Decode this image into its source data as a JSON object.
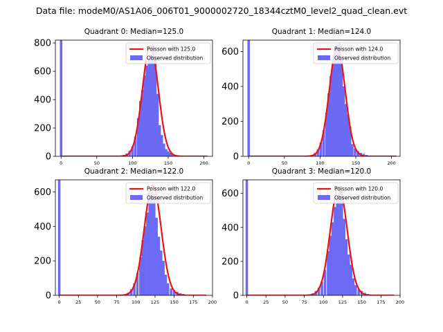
{
  "figure": {
    "suptitle": "Data file: modeM0/AS1A06_006T01_9000002720_18344cztM0_level2_quad_clean.evt",
    "bar_color": "#6a6af5",
    "curve_color": "#ee1111"
  },
  "chart_data": [
    {
      "type": "bar",
      "title": "Quadrant 0: Median=125.0",
      "xlabel": "",
      "ylabel": "",
      "xlim": [
        -8,
        212
      ],
      "ylim": [
        0,
        820
      ],
      "xticks": [
        0,
        50,
        100,
        150,
        200
      ],
      "yticks": [
        0,
        200,
        400,
        600,
        800
      ],
      "bin_width": 3.5,
      "zero_bin_height": 820,
      "poisson_mean": 125.0,
      "poisson_peak": 780,
      "curve_range": [
        0,
        205
      ],
      "hist_centers": [
        80,
        84,
        88,
        92,
        96,
        100,
        104,
        108,
        111,
        114,
        117,
        120,
        123,
        126,
        129,
        132,
        135,
        138,
        141,
        144,
        147,
        150,
        153,
        156,
        160,
        164,
        168,
        172
      ],
      "hist_values": [
        3,
        5,
        10,
        20,
        40,
        70,
        140,
        270,
        390,
        470,
        570,
        640,
        690,
        720,
        790,
        700,
        440,
        220,
        150,
        90,
        50,
        35,
        25,
        15,
        10,
        5,
        3,
        2
      ],
      "legend": {
        "curve": "Poisson with 125.0",
        "bars": "Observed distribution",
        "position": "upper right"
      }
    },
    {
      "type": "bar",
      "title": "Quadrant 1: Median=124.0",
      "xlabel": "",
      "ylabel": "",
      "xlim": [
        -8,
        212
      ],
      "ylim": [
        0,
        665
      ],
      "xticks": [
        0,
        50,
        100,
        150,
        200
      ],
      "yticks": [
        0,
        200,
        400,
        600
      ],
      "bin_width": 3.5,
      "zero_bin_height": 665,
      "poisson_mean": 124.0,
      "poisson_peak": 625,
      "curve_range": [
        0,
        207
      ],
      "hist_centers": [
        85,
        89,
        93,
        97,
        101,
        105,
        109,
        112,
        115,
        118,
        121,
        124,
        127,
        130,
        133,
        136,
        139,
        142,
        145,
        149,
        153,
        157,
        161,
        165,
        170,
        175
      ],
      "hist_values": [
        4,
        8,
        20,
        40,
        80,
        150,
        250,
        360,
        460,
        540,
        610,
        640,
        650,
        560,
        400,
        300,
        240,
        170,
        70,
        45,
        30,
        20,
        14,
        8,
        4,
        2
      ],
      "legend": {
        "curve": "Poisson with 124.0",
        "bars": "Observed distribution",
        "position": "upper right"
      }
    },
    {
      "type": "bar",
      "title": "Quadrant 2: Median=122.0",
      "xlabel": "",
      "ylabel": "",
      "xlim": [
        -5,
        200
      ],
      "ylim": [
        0,
        670
      ],
      "xticks": [
        0,
        25,
        50,
        75,
        100,
        125,
        150,
        175,
        200
      ],
      "yticks": [
        0,
        200,
        400,
        600
      ],
      "bin_width": 3.2,
      "zero_bin_height": 670,
      "poisson_mean": 122.0,
      "poisson_peak": 640,
      "curve_range": [
        0,
        192
      ],
      "hist_centers": [
        82,
        86,
        90,
        94,
        98,
        102,
        106,
        109,
        112,
        115,
        118,
        121,
        124,
        127,
        130,
        133,
        136,
        139,
        142,
        146,
        150,
        154,
        158,
        162,
        166,
        170
      ],
      "hist_values": [
        3,
        6,
        15,
        35,
        70,
        130,
        220,
        320,
        400,
        480,
        570,
        600,
        590,
        450,
        340,
        260,
        200,
        120,
        70,
        40,
        30,
        20,
        12,
        8,
        4,
        2
      ],
      "legend": {
        "curve": "Poisson with 122.0",
        "bars": "Observed distribution",
        "position": "upper right"
      }
    },
    {
      "type": "bar",
      "title": "Quadrant 3: Median=120.0",
      "xlabel": "",
      "ylabel": "",
      "xlim": [
        -5,
        200
      ],
      "ylim": [
        0,
        680
      ],
      "xticks": [
        0,
        25,
        50,
        75,
        100,
        125,
        150,
        175,
        200
      ],
      "yticks": [
        0,
        200,
        400,
        600
      ],
      "bin_width": 3.2,
      "zero_bin_height": 680,
      "poisson_mean": 120.0,
      "poisson_peak": 640,
      "curve_range": [
        0,
        192
      ],
      "hist_centers": [
        78,
        82,
        86,
        90,
        94,
        98,
        102,
        106,
        109,
        112,
        115,
        118,
        121,
        124,
        127,
        130,
        133,
        136,
        139,
        142,
        146,
        150,
        154,
        158,
        162,
        166
      ],
      "hist_values": [
        3,
        6,
        12,
        25,
        45,
        80,
        150,
        260,
        350,
        430,
        520,
        580,
        620,
        600,
        450,
        330,
        240,
        180,
        100,
        60,
        35,
        25,
        15,
        8,
        4,
        2
      ],
      "legend": {
        "curve": "Poisson with 120.0",
        "bars": "Observed distribution",
        "position": "upper right"
      }
    }
  ]
}
